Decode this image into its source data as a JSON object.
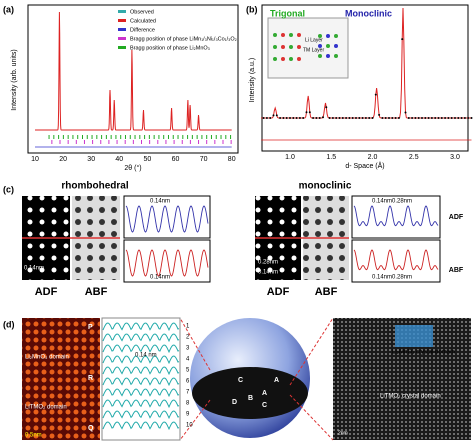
{
  "panel_a": {
    "label": "(a)",
    "legend": [
      "Observed",
      "Calculated",
      "Difference",
      "Bragg position of phase LiMn₁/₃Ni₁/₃Co₁/₃O₂",
      "Bragg position of phase Li₂MnO₃"
    ],
    "y_label": "Intensity (arb. units)",
    "x_label": "2θ (°)",
    "x_ticks": [
      "10",
      "20",
      "30",
      "40",
      "50",
      "60",
      "70",
      "80"
    ]
  },
  "panel_b": {
    "label": "(b)",
    "trigonal": "Trigonal",
    "monoclinic": "Monoclinic",
    "li_layer": "Li Layer",
    "tm_layer": "TM Layer",
    "y_label": "Intensity (a.u.)",
    "x_label": "d- Space (Å)",
    "x_ticks": [
      "1.0",
      "1.5",
      "2.0",
      "2.5",
      "3.0"
    ]
  },
  "panel_c": {
    "label": "(c)",
    "left_title": "rhombohedral",
    "right_title": "monoclinic",
    "left_image_labels": [
      "ADF",
      "ABF"
    ],
    "right_image_labels": [
      "ADF",
      "ABF"
    ],
    "plot_labels": [
      "ADF",
      "ABF"
    ],
    "left_image_distance": "0.14nm",
    "left_plot_top_distance": "0.14nm",
    "left_plot_bottom_distance": "0.14nm",
    "right_image_distances": [
      "0.28nm",
      "0.14nm"
    ],
    "right_plot_top_distances": [
      "0.14nm",
      "0.28nm"
    ],
    "right_plot_bottom_distances": [
      "0.14nm",
      "0.28nm"
    ]
  },
  "panel_d": {
    "label": "(d)",
    "image_letters": [
      "P",
      "R",
      "Q"
    ],
    "domains": [
      "Li₂MnO₃ domain",
      "LiTMO₂ domain"
    ],
    "scale": "0.5nm",
    "profile_distance": "0.14 nm",
    "profile_numbers": [
      "1",
      "2",
      "3",
      "4",
      "5",
      "6",
      "7",
      "8",
      "9",
      "10"
    ],
    "sphere_letters": [
      "A",
      "B",
      "C",
      "D",
      "A",
      "C"
    ],
    "crystal_domains": [
      "Li₂MnO₃ crystal domain",
      "LiTMO₂ crystal domain"
    ],
    "hrtem_scale": "2nm"
  }
}
